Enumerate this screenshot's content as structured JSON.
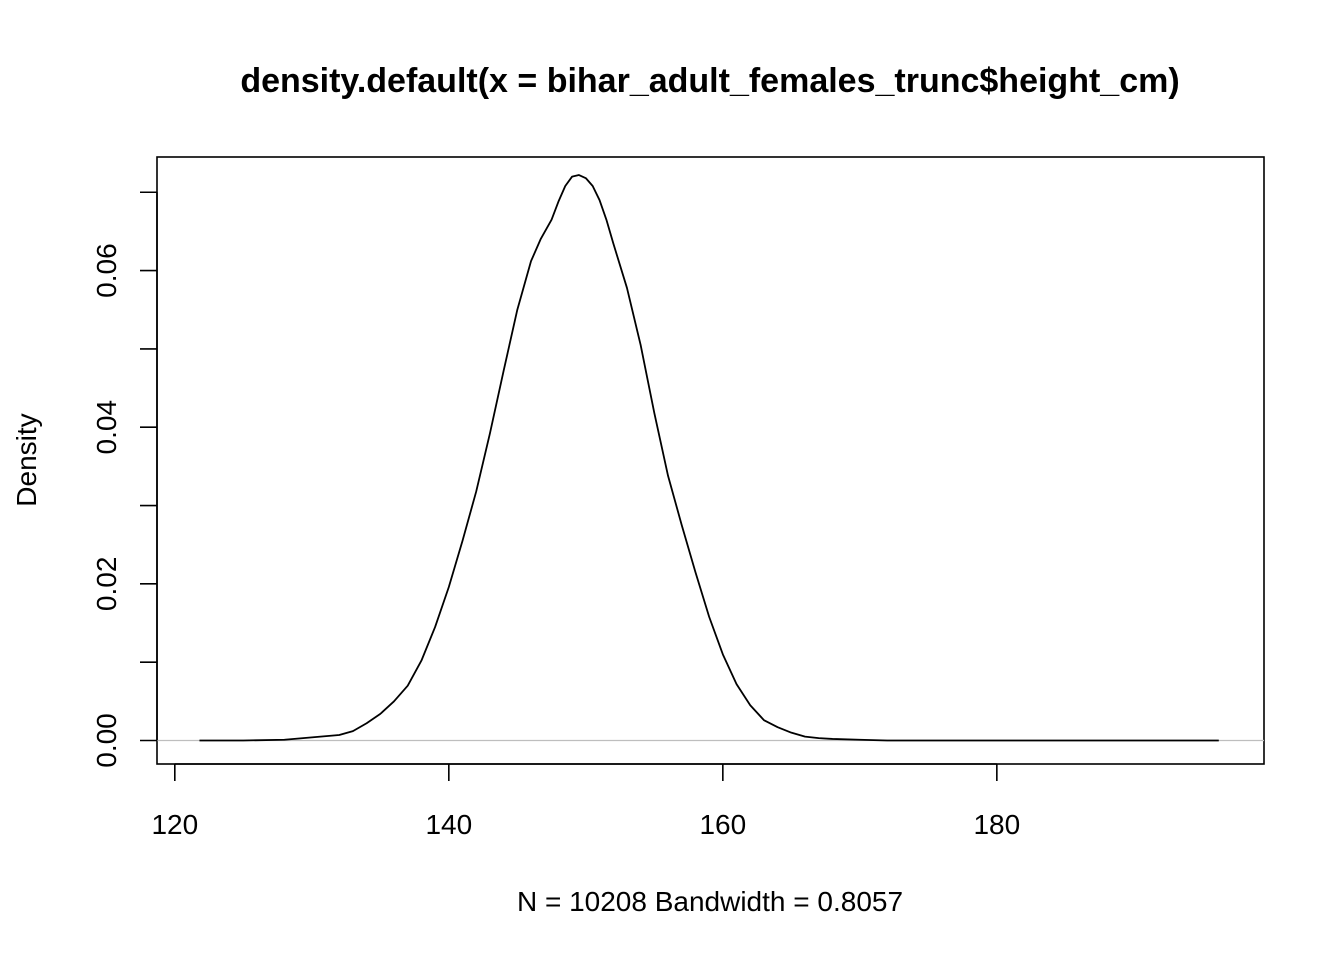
{
  "chart_data": {
    "type": "line",
    "title": "density.default(x = bihar_adult_females_trunc$height_cm)",
    "xlabel": "N = 10208   Bandwidth = 0.8057",
    "ylabel": "Density",
    "xlim": [
      118.7,
      199.5
    ],
    "ylim": [
      -0.003,
      0.0745
    ],
    "x_ticks": [
      120,
      140,
      160,
      180
    ],
    "x_tick_labels": [
      "120",
      "140",
      "160",
      "180"
    ],
    "y_ticks": [
      0.0,
      0.01,
      0.02,
      0.03,
      0.04,
      0.05,
      0.06,
      0.07
    ],
    "y_tick_labels": [
      "0.00",
      "",
      "0.02",
      "",
      "0.04",
      "",
      "0.06",
      ""
    ],
    "zero_line": true,
    "grid": false,
    "legend": "none",
    "colors": {
      "line": "#000000",
      "zero_line": "#bebebe",
      "frame": "#000000"
    },
    "series": [
      {
        "x": [
          121.8,
          125,
          128,
          130,
          132,
          133,
          134,
          135,
          136,
          137,
          138,
          139,
          140,
          141,
          142,
          143,
          144,
          145,
          146,
          146.7,
          147.5,
          148,
          148.5,
          149,
          149.5,
          150,
          150.5,
          151,
          151.5,
          152,
          153,
          154,
          155,
          156,
          157,
          158,
          159,
          160,
          161,
          162,
          163,
          164,
          165,
          166,
          167,
          168,
          170,
          172,
          175,
          180,
          185,
          190,
          196.2
        ],
        "y": [
          0.0,
          0.0,
          0.0001,
          0.0004,
          0.0007,
          0.0012,
          0.0022,
          0.0034,
          0.005,
          0.007,
          0.0102,
          0.0145,
          0.0196,
          0.0255,
          0.0318,
          0.0392,
          0.0472,
          0.055,
          0.0612,
          0.064,
          0.0665,
          0.0688,
          0.0708,
          0.072,
          0.0722,
          0.0718,
          0.0708,
          0.069,
          0.0665,
          0.0635,
          0.0578,
          0.0505,
          0.0418,
          0.0338,
          0.0275,
          0.0215,
          0.0158,
          0.011,
          0.0072,
          0.0045,
          0.0026,
          0.0017,
          0.001,
          0.0005,
          0.0003,
          0.0002,
          0.0001,
          0.0,
          0.0,
          0.0,
          0.0,
          0.0,
          0.0
        ]
      }
    ]
  }
}
